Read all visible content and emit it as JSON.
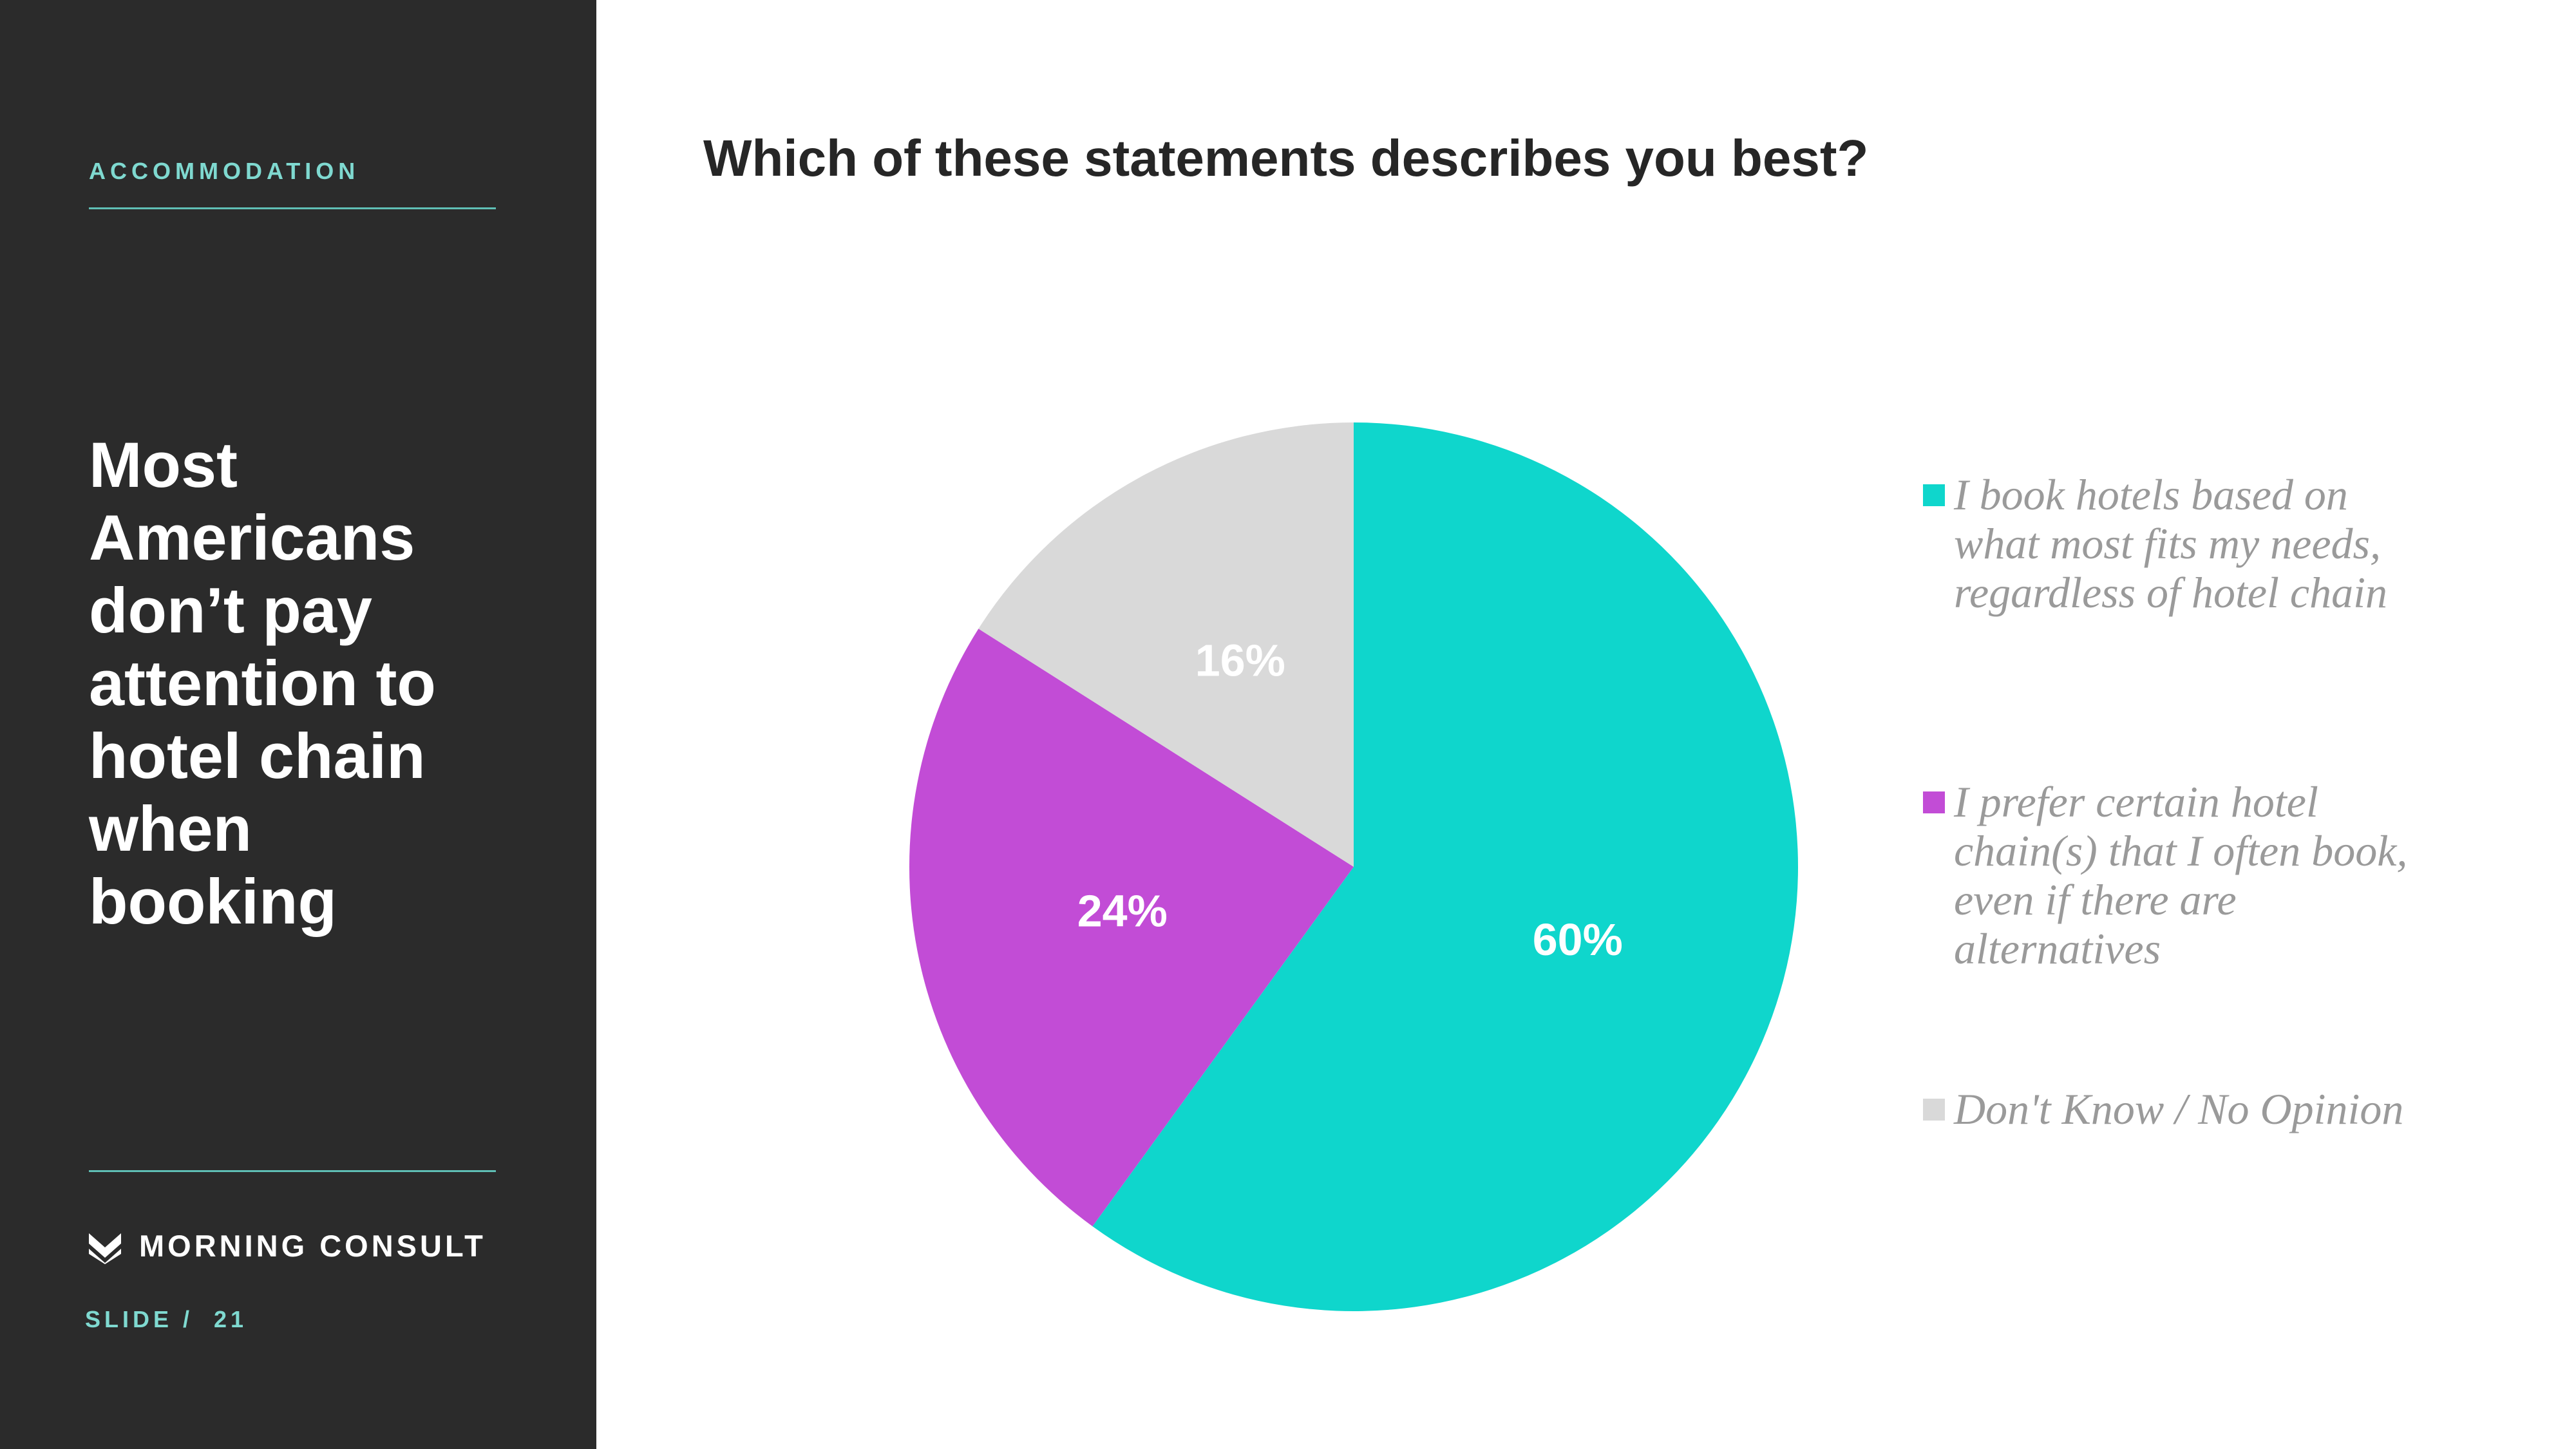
{
  "sidebar": {
    "section": "ACCOMMODATION",
    "headline_lines": [
      "Most",
      "Americans",
      "don’t pay",
      "attention to",
      "hotel chain",
      "when",
      "booking"
    ],
    "brand": "MORNING CONSULT",
    "slide_label": "SLIDE /  21"
  },
  "colors": {
    "sidebar_bg": "#2b2b2b",
    "accent_teal": "#7fd9d0",
    "series_1": "#0fd6cc",
    "series_2": "#c24cd6",
    "series_3": "#d9d9d9"
  },
  "chart_data": {
    "type": "pie",
    "title": "Which of these statements describes you best?",
    "slices": [
      {
        "legend_lines": [
          "I book hotels based on",
          "what most fits my needs,",
          "regardless of hotel chain"
        ],
        "value": 60,
        "label": "60%",
        "color": "#0fd6cc"
      },
      {
        "legend_lines": [
          "I prefer certain hotel",
          "chain(s) that I often book,",
          "even if there are",
          "alternatives"
        ],
        "value": 24,
        "label": "24%",
        "color": "#c24cd6"
      },
      {
        "legend_lines": [
          "Don't Know / No Opinion"
        ],
        "value": 16,
        "label": "16%",
        "color": "#d9d9d9"
      }
    ],
    "start": "12 o'clock",
    "direction": "clockwise",
    "legend_position": "right"
  }
}
